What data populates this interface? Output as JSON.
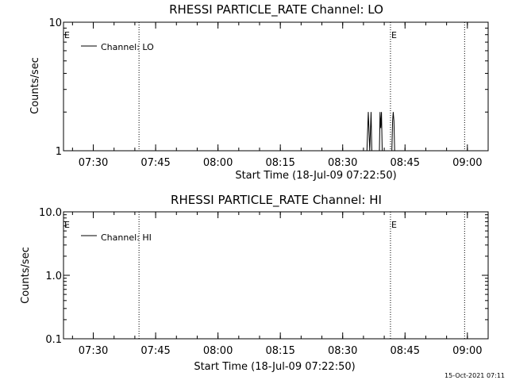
{
  "chart_data": [
    {
      "type": "line",
      "title": "RHESSI PARTICLE_RATE Channel: LO",
      "xlabel": "Start Time (18-Jul-09 07:22:50)",
      "ylabel": "Counts/sec",
      "y_scale": "log",
      "ylim": [
        1,
        10
      ],
      "xlim": [
        "07:22:50",
        "09:05:00"
      ],
      "x_tick_labels": [
        "07:30",
        "07:45",
        "08:00",
        "08:15",
        "08:30",
        "08:45",
        "09:00"
      ],
      "y_tick_labels": [
        "1",
        "10"
      ],
      "legend": {
        "label": "Channel: LO",
        "placement": "top-left"
      },
      "grid": false,
      "event_markers": [
        {
          "time": "07:41:00",
          "label": "",
          "style": "dotted"
        },
        {
          "time": "08:41:30",
          "label": "E",
          "style": "dotted"
        },
        {
          "time": "08:59:20",
          "label": "",
          "style": "dotted"
        }
      ],
      "start_marker_label": "E",
      "series": [
        {
          "name": "Channel: LO",
          "x": [
            "08:35:50",
            "08:36:00",
            "08:36:10",
            "08:36:20",
            "08:36:30",
            "08:36:40",
            "08:36:50",
            "08:37:00",
            "08:38:50",
            "08:39:00",
            "08:39:10",
            "08:39:20",
            "08:39:30",
            "08:41:50",
            "08:42:00",
            "08:42:10",
            "08:42:20",
            "08:42:30"
          ],
          "y": [
            1,
            1.4,
            2,
            1.4,
            1,
            1.4,
            2,
            1,
            1,
            2,
            1.5,
            2,
            1,
            1,
            1.7,
            2,
            1.7,
            1
          ]
        }
      ]
    },
    {
      "type": "line",
      "title": "RHESSI PARTICLE_RATE Channel: HI",
      "xlabel": "Start Time (18-Jul-09 07:22:50)",
      "ylabel": "Counts/sec",
      "y_scale": "log",
      "ylim": [
        0.1,
        10
      ],
      "xlim": [
        "07:22:50",
        "09:05:00"
      ],
      "x_tick_labels": [
        "07:30",
        "07:45",
        "08:00",
        "08:15",
        "08:30",
        "08:45",
        "09:00"
      ],
      "y_tick_labels": [
        "0.1",
        "1.0",
        "10.0"
      ],
      "legend": {
        "label": "Channel: HI",
        "placement": "top-left"
      },
      "grid": false,
      "event_markers": [
        {
          "time": "07:41:00",
          "label": "",
          "style": "dotted"
        },
        {
          "time": "08:41:30",
          "label": "E",
          "style": "dotted"
        },
        {
          "time": "08:59:20",
          "label": "",
          "style": "dotted"
        }
      ],
      "start_marker_label": "E",
      "series": [
        {
          "name": "Channel: HI",
          "x": [],
          "y": []
        }
      ]
    }
  ],
  "footer": {
    "timestamp": "15-Oct-2021 07:11"
  }
}
